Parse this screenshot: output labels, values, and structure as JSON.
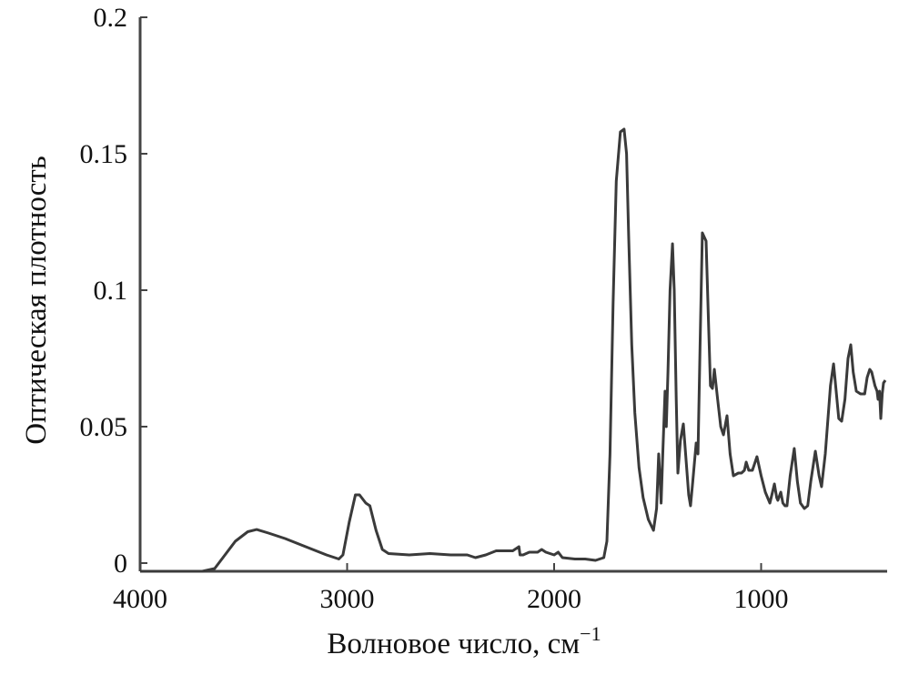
{
  "chart_data": {
    "type": "line",
    "title": "",
    "xlabel": "Волновое число, см",
    "xlabel_superscript": "−1",
    "ylabel": "Оптическая плотность",
    "xlim": [
      4000,
      400
    ],
    "x_reversed": true,
    "ylim": [
      -0.003,
      0.2
    ],
    "grid": false,
    "line_color": "#3a3a3a",
    "x_ticks": [
      4000,
      3000,
      2000,
      1000
    ],
    "x_tick_labels": [
      "4000",
      "3000",
      "2000",
      "1000"
    ],
    "y_ticks": [
      0,
      0.05,
      0.1,
      0.15,
      0.2
    ],
    "y_tick_labels": [
      "0",
      "0.05",
      "0.1",
      "0.15",
      "0.2"
    ],
    "series": [
      {
        "points": [
          [
            4000,
            -0.003
          ],
          [
            3700,
            -0.003
          ],
          [
            3640,
            -0.002
          ],
          [
            3600,
            0.002
          ],
          [
            3540,
            0.008
          ],
          [
            3480,
            0.0115
          ],
          [
            3437,
            0.0123
          ],
          [
            3380,
            0.011
          ],
          [
            3300,
            0.009
          ],
          [
            3200,
            0.006
          ],
          [
            3100,
            0.003
          ],
          [
            3040,
            0.0015
          ],
          [
            3020,
            0.003
          ],
          [
            2990,
            0.015
          ],
          [
            2960,
            0.025
          ],
          [
            2940,
            0.025
          ],
          [
            2910,
            0.022
          ],
          [
            2890,
            0.021
          ],
          [
            2860,
            0.012
          ],
          [
            2830,
            0.005
          ],
          [
            2800,
            0.0035
          ],
          [
            2700,
            0.003
          ],
          [
            2600,
            0.0035
          ],
          [
            2500,
            0.003
          ],
          [
            2420,
            0.003
          ],
          [
            2380,
            0.002
          ],
          [
            2330,
            0.003
          ],
          [
            2280,
            0.0045
          ],
          [
            2200,
            0.0045
          ],
          [
            2170,
            0.006
          ],
          [
            2165,
            0.003
          ],
          [
            2150,
            0.003
          ],
          [
            2120,
            0.004
          ],
          [
            2080,
            0.004
          ],
          [
            2060,
            0.005
          ],
          [
            2040,
            0.004
          ],
          [
            2000,
            0.003
          ],
          [
            1980,
            0.004
          ],
          [
            1960,
            0.002
          ],
          [
            1900,
            0.0015
          ],
          [
            1850,
            0.0015
          ],
          [
            1800,
            0.001
          ],
          [
            1760,
            0.002
          ],
          [
            1745,
            0.008
          ],
          [
            1730,
            0.04
          ],
          [
            1715,
            0.095
          ],
          [
            1700,
            0.14
          ],
          [
            1680,
            0.158
          ],
          [
            1662,
            0.159
          ],
          [
            1650,
            0.15
          ],
          [
            1640,
            0.12
          ],
          [
            1625,
            0.08
          ],
          [
            1610,
            0.055
          ],
          [
            1590,
            0.035
          ],
          [
            1570,
            0.024
          ],
          [
            1545,
            0.016
          ],
          [
            1520,
            0.012
          ],
          [
            1505,
            0.02
          ],
          [
            1495,
            0.04
          ],
          [
            1488,
            0.03
          ],
          [
            1483,
            0.022
          ],
          [
            1475,
            0.04
          ],
          [
            1464,
            0.063
          ],
          [
            1458,
            0.05
          ],
          [
            1450,
            0.07
          ],
          [
            1440,
            0.1
          ],
          [
            1428,
            0.117
          ],
          [
            1420,
            0.1
          ],
          [
            1410,
            0.06
          ],
          [
            1402,
            0.033
          ],
          [
            1390,
            0.045
          ],
          [
            1376,
            0.051
          ],
          [
            1365,
            0.04
          ],
          [
            1350,
            0.025
          ],
          [
            1341,
            0.021
          ],
          [
            1330,
            0.03
          ],
          [
            1314,
            0.044
          ],
          [
            1305,
            0.04
          ],
          [
            1295,
            0.08
          ],
          [
            1284,
            0.121
          ],
          [
            1266,
            0.118
          ],
          [
            1255,
            0.09
          ],
          [
            1245,
            0.065
          ],
          [
            1235,
            0.064
          ],
          [
            1226,
            0.071
          ],
          [
            1210,
            0.06
          ],
          [
            1195,
            0.05
          ],
          [
            1182,
            0.047
          ],
          [
            1165,
            0.054
          ],
          [
            1150,
            0.04
          ],
          [
            1134,
            0.032
          ],
          [
            1110,
            0.033
          ],
          [
            1095,
            0.033
          ],
          [
            1081,
            0.034
          ],
          [
            1072,
            0.037
          ],
          [
            1060,
            0.034
          ],
          [
            1042,
            0.034
          ],
          [
            1020,
            0.039
          ],
          [
            1000,
            0.032
          ],
          [
            980,
            0.026
          ],
          [
            958,
            0.022
          ],
          [
            945,
            0.026
          ],
          [
            936,
            0.029
          ],
          [
            925,
            0.024
          ],
          [
            919,
            0.023
          ],
          [
            905,
            0.026
          ],
          [
            895,
            0.022
          ],
          [
            885,
            0.021
          ],
          [
            875,
            0.021
          ],
          [
            860,
            0.032
          ],
          [
            840,
            0.042
          ],
          [
            825,
            0.03
          ],
          [
            810,
            0.022
          ],
          [
            791,
            0.02
          ],
          [
            775,
            0.021
          ],
          [
            760,
            0.03
          ],
          [
            738,
            0.041
          ],
          [
            720,
            0.032
          ],
          [
            708,
            0.028
          ],
          [
            690,
            0.04
          ],
          [
            665,
            0.065
          ],
          [
            650,
            0.073
          ],
          [
            640,
            0.065
          ],
          [
            625,
            0.053
          ],
          [
            611,
            0.052
          ],
          [
            595,
            0.06
          ],
          [
            580,
            0.075
          ],
          [
            567,
            0.08
          ],
          [
            555,
            0.07
          ],
          [
            540,
            0.063
          ],
          [
            520,
            0.062
          ],
          [
            500,
            0.062
          ],
          [
            488,
            0.068
          ],
          [
            475,
            0.071
          ],
          [
            466,
            0.07
          ],
          [
            450,
            0.065
          ],
          [
            440,
            0.063
          ],
          [
            435,
            0.06
          ],
          [
            428,
            0.063
          ],
          [
            422,
            0.053
          ],
          [
            415,
            0.062
          ],
          [
            409,
            0.066
          ],
          [
            400,
            0.067
          ]
        ]
      }
    ]
  }
}
